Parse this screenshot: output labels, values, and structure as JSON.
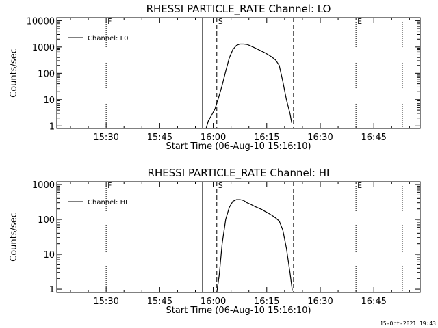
{
  "footer": {
    "timestamp": "15-Oct-2021 19:43"
  },
  "chart_data": [
    {
      "type": "line",
      "title": "RHESSI PARTICLE_RATE Channel: LO",
      "xlabel": "Start Time (06-Aug-10 15:16:10)",
      "ylabel": "Counts/sec",
      "yscale": "log",
      "ylim": [
        0.8,
        13000
      ],
      "xlim": [
        "15:16:10",
        "16:58:00"
      ],
      "x_ticks": [
        "15:30",
        "15:45",
        "16:00",
        "16:15",
        "16:30",
        "16:45"
      ],
      "y_ticks": [
        {
          "value": 1,
          "label": "1"
        },
        {
          "value": 10,
          "label": "10"
        },
        {
          "value": 100,
          "label": "100"
        },
        {
          "value": 1000,
          "label": "1000"
        },
        {
          "value": 10000,
          "label": "10000"
        }
      ],
      "legend": {
        "position": "top-left",
        "entries": [
          "Channel: L0"
        ]
      },
      "series": [
        {
          "name": "Channel: L0",
          "x": [
            "15:58:00",
            "15:58:40",
            "15:59:30",
            "16:00:30",
            "16:01:30",
            "16:02:30",
            "16:03:30",
            "16:04:30",
            "16:05:30",
            "16:06:30",
            "16:07:30",
            "16:08:30",
            "16:09:30",
            "16:10:30",
            "16:11:30",
            "16:12:30",
            "16:13:30",
            "16:14:30",
            "16:15:30",
            "16:16:30",
            "16:17:30",
            "16:18:30",
            "16:19:30",
            "16:20:30",
            "16:21:30",
            "16:22:00"
          ],
          "values": [
            0.8,
            1.6,
            2.5,
            4.5,
            12,
            35,
            120,
            380,
            800,
            1150,
            1300,
            1300,
            1250,
            1100,
            950,
            820,
            700,
            600,
            500,
            410,
            320,
            200,
            50,
            10,
            3,
            1.3
          ]
        }
      ],
      "vertical_markers": [
        {
          "time": "15:30:00",
          "style": "dotted",
          "label": "F"
        },
        {
          "time": "15:57:00",
          "style": "solid",
          "label": ""
        },
        {
          "time": "16:01:00",
          "style": "dashed",
          "label": "S"
        },
        {
          "time": "16:22:30",
          "style": "dashed",
          "label": ""
        },
        {
          "time": "16:40:00",
          "style": "dotted",
          "label": "E"
        },
        {
          "time": "16:53:00",
          "style": "dotted",
          "label": ""
        }
      ]
    },
    {
      "type": "line",
      "title": "RHESSI PARTICLE_RATE Channel: HI",
      "xlabel": "Start Time (06-Aug-10 15:16:10)",
      "ylabel": "Counts/sec",
      "yscale": "log",
      "ylim": [
        0.8,
        1200
      ],
      "xlim": [
        "15:16:10",
        "16:58:00"
      ],
      "x_ticks": [
        "15:30",
        "15:45",
        "16:00",
        "16:15",
        "16:30",
        "16:45"
      ],
      "y_ticks": [
        {
          "value": 1,
          "label": "1"
        },
        {
          "value": 10,
          "label": "10"
        },
        {
          "value": 100,
          "label": "100"
        },
        {
          "value": 1000,
          "label": "1000"
        }
      ],
      "legend": {
        "position": "top-left",
        "entries": [
          "Channel: HI"
        ]
      },
      "series": [
        {
          "name": "Channel: HI",
          "x": [
            "16:01:00",
            "16:01:40",
            "16:02:30",
            "16:03:30",
            "16:04:30",
            "16:05:30",
            "16:06:30",
            "16:07:30",
            "16:08:30",
            "16:09:30",
            "16:10:30",
            "16:11:30",
            "16:12:30",
            "16:13:30",
            "16:14:30",
            "16:15:30",
            "16:16:30",
            "16:17:30",
            "16:18:30",
            "16:19:30",
            "16:20:30",
            "16:21:30",
            "16:22:10"
          ],
          "values": [
            0.8,
            2.5,
            20,
            100,
            220,
            330,
            370,
            370,
            350,
            300,
            270,
            240,
            215,
            195,
            170,
            150,
            130,
            110,
            90,
            50,
            15,
            3,
            0.9
          ]
        }
      ],
      "vertical_markers": [
        {
          "time": "15:30:00",
          "style": "dotted",
          "label": "F"
        },
        {
          "time": "15:57:00",
          "style": "solid",
          "label": ""
        },
        {
          "time": "16:01:00",
          "style": "dashed",
          "label": "S"
        },
        {
          "time": "16:22:30",
          "style": "dashed",
          "label": ""
        },
        {
          "time": "16:40:00",
          "style": "dotted",
          "label": "E"
        },
        {
          "time": "16:53:00",
          "style": "dotted",
          "label": ""
        }
      ]
    }
  ]
}
